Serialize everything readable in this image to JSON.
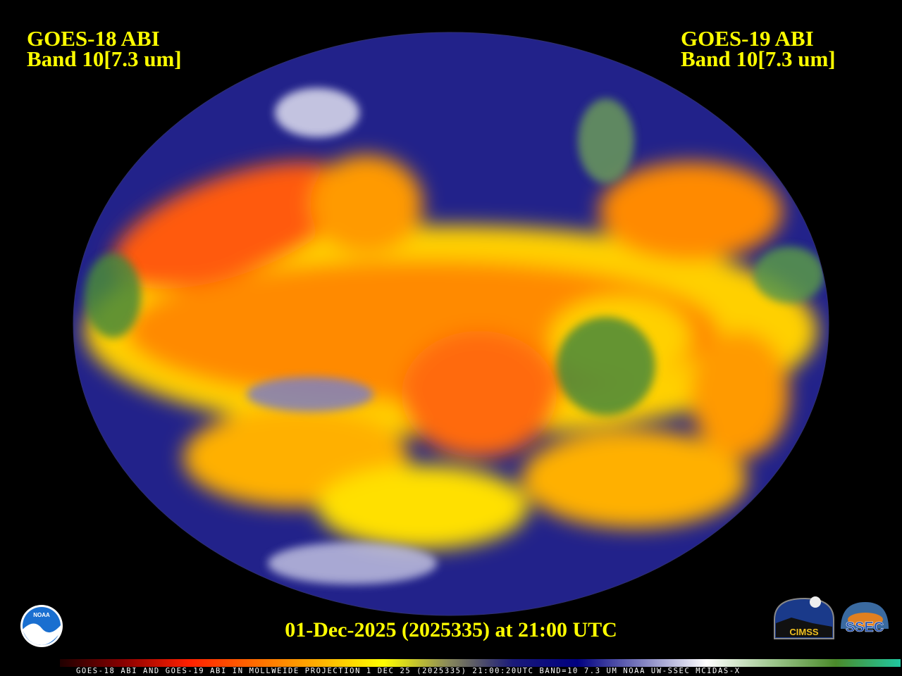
{
  "header": {
    "left": {
      "satellite": "GOES-18 ABI",
      "band": "Band 10[7.3 um]"
    },
    "right": {
      "satellite": "GOES-19 ABI",
      "band": "Band 10[7.3 um]"
    }
  },
  "timestamp": "01-Dec-2025 (2025335) at 21:00 UTC",
  "caption": "GOES-18 ABI AND GOES-19 ABI IN MOLLWEIDE PROJECTION 1 DEC 25 (2025335) 21:00:20UTC BAND=10 7.3 UM NOAA UW-SSEC MCIDAS-X",
  "logos": {
    "left": "NOAA",
    "right1": "CIMSS",
    "right2": "SSEC"
  },
  "colorbar": {
    "colors": [
      "#200000",
      "#8b0000",
      "#ff2000",
      "#ff6a00",
      "#ffb000",
      "#ffff00",
      "#8a8a5a",
      "#1a1a7a",
      "#000080",
      "#8080c0",
      "#ffffff",
      "#a0c890",
      "#4a8a2a",
      "#20c8a0"
    ]
  },
  "colors": {
    "text": "#ffff00",
    "moist": "#1a1a8a",
    "dry": "#ff5a00"
  }
}
